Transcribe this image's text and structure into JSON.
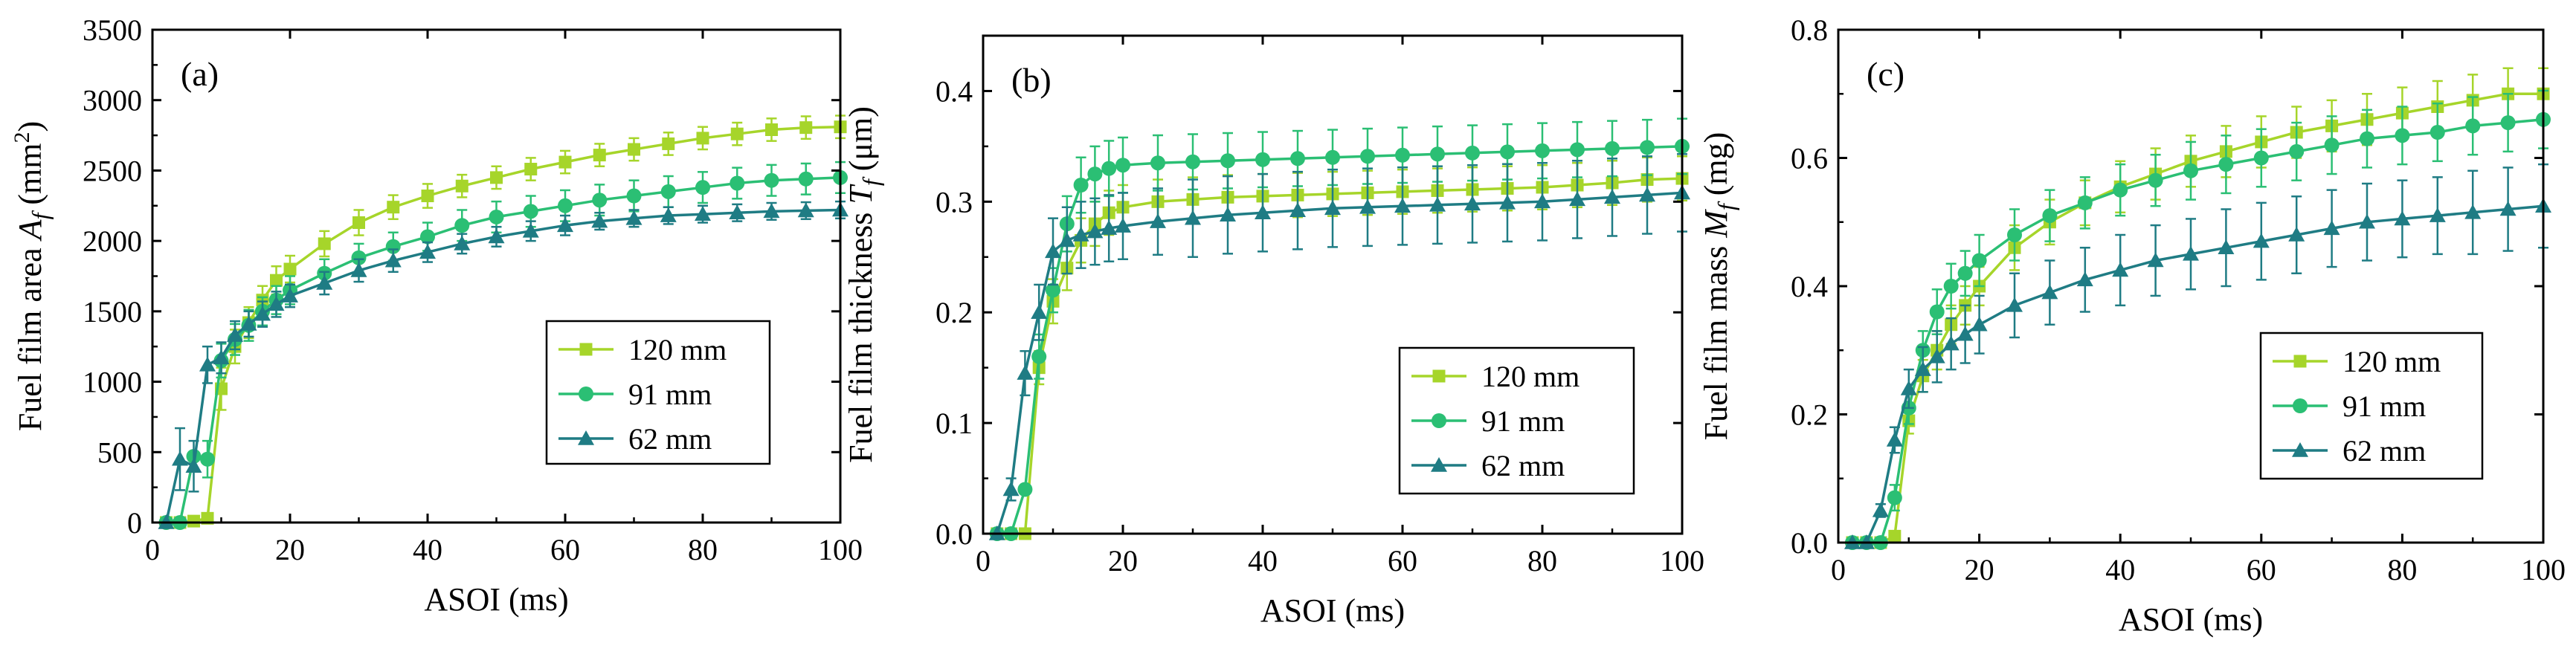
{
  "colors": {
    "s120": "#a6d52a",
    "s91": "#2bbf74",
    "s62": "#1f7c84"
  },
  "legend_labels": [
    "120 mm",
    "91 mm",
    "62 mm"
  ],
  "chart_data": [
    {
      "type": "line",
      "panel_label": "(a)",
      "title": "",
      "xlabel": "ASOI (ms)",
      "ylabel_main": "Fuel film area ",
      "ylabel_sym": "A",
      "ylabel_sub": "f",
      "ylabel_unit_pre": " (mm",
      "ylabel_unit_sup": "2",
      "ylabel_unit_post": ")",
      "xlim": [
        0,
        100
      ],
      "ylim": [
        0,
        3500
      ],
      "xticks": [
        0,
        20,
        40,
        60,
        80,
        100
      ],
      "yticks": [
        0,
        500,
        1000,
        1500,
        2000,
        2500,
        3000,
        3500
      ],
      "ytick_labels": [
        "0",
        "500",
        "1000",
        "1500",
        "2000",
        "2500",
        "3000",
        "3500"
      ],
      "legend_location": "center-right",
      "series": [
        {
          "name": "120 mm",
          "color_key": "s120",
          "marker": "square",
          "x": [
            2,
            4,
            6,
            8,
            10,
            12,
            14,
            16,
            18,
            20,
            25,
            30,
            35,
            40,
            45,
            50,
            55,
            60,
            65,
            70,
            75,
            80,
            85,
            90,
            95,
            100
          ],
          "y": [
            0,
            0,
            10,
            30,
            950,
            1250,
            1420,
            1580,
            1720,
            1800,
            1980,
            2130,
            2240,
            2320,
            2390,
            2450,
            2510,
            2560,
            2610,
            2650,
            2690,
            2730,
            2760,
            2790,
            2805,
            2810
          ],
          "err": [
            0,
            0,
            0,
            0,
            150,
            120,
            110,
            100,
            100,
            95,
            90,
            90,
            85,
            85,
            80,
            80,
            80,
            80,
            80,
            80,
            80,
            80,
            80,
            80,
            80,
            80
          ]
        },
        {
          "name": "91 mm",
          "color_key": "s91",
          "marker": "circle",
          "x": [
            2,
            4,
            6,
            8,
            10,
            12,
            14,
            16,
            18,
            20,
            25,
            30,
            35,
            40,
            45,
            50,
            55,
            60,
            65,
            70,
            75,
            80,
            85,
            90,
            95,
            100
          ],
          "y": [
            0,
            0,
            470,
            450,
            1150,
            1300,
            1400,
            1500,
            1580,
            1650,
            1770,
            1880,
            1960,
            2030,
            2110,
            2170,
            2210,
            2250,
            2290,
            2320,
            2350,
            2380,
            2410,
            2430,
            2440,
            2450
          ],
          "err": [
            0,
            0,
            0,
            130,
            120,
            110,
            110,
            100,
            100,
            100,
            100,
            100,
            100,
            100,
            110,
            110,
            110,
            110,
            110,
            110,
            110,
            110,
            110,
            110,
            110,
            110
          ]
        },
        {
          "name": "62 mm",
          "color_key": "s62",
          "marker": "triangle",
          "x": [
            2,
            4,
            6,
            8,
            10,
            12,
            14,
            16,
            18,
            20,
            25,
            30,
            35,
            40,
            45,
            50,
            55,
            60,
            65,
            70,
            75,
            80,
            85,
            90,
            95,
            100
          ],
          "y": [
            0,
            450,
            400,
            1120,
            1170,
            1330,
            1410,
            1480,
            1550,
            1610,
            1700,
            1790,
            1860,
            1920,
            1980,
            2030,
            2070,
            2110,
            2140,
            2160,
            2180,
            2190,
            2200,
            2210,
            2215,
            2220
          ],
          "err": [
            0,
            220,
            180,
            130,
            110,
            100,
            90,
            90,
            90,
            80,
            80,
            80,
            80,
            70,
            70,
            70,
            70,
            70,
            60,
            60,
            60,
            60,
            60,
            60,
            60,
            60
          ]
        }
      ]
    },
    {
      "type": "line",
      "panel_label": "(b)",
      "title": "",
      "xlabel": "ASOI (ms)",
      "ylabel_main": "Fuel film thickness ",
      "ylabel_sym": "T",
      "ylabel_sub": "f",
      "ylabel_unit_pre": " (μm)",
      "ylabel_unit_sup": "",
      "ylabel_unit_post": "",
      "xlim": [
        0,
        100
      ],
      "ylim": [
        0,
        0.45
      ],
      "xticks": [
        0,
        20,
        40,
        60,
        80,
        100
      ],
      "yticks": [
        0,
        0.1,
        0.2,
        0.3,
        0.4
      ],
      "ytick_labels": [
        "0.0",
        "0.1",
        "0.2",
        "0.3",
        "0.4"
      ],
      "legend_location": "center-right",
      "series": [
        {
          "name": "120 mm",
          "color_key": "s120",
          "marker": "square",
          "x": [
            2,
            4,
            6,
            8,
            10,
            12,
            14,
            16,
            18,
            20,
            25,
            30,
            35,
            40,
            45,
            50,
            55,
            60,
            65,
            70,
            75,
            80,
            85,
            90,
            95,
            100
          ],
          "y": [
            0,
            0,
            0,
            0.15,
            0.21,
            0.24,
            0.265,
            0.28,
            0.29,
            0.295,
            0.3,
            0.302,
            0.304,
            0.305,
            0.306,
            0.307,
            0.308,
            0.309,
            0.31,
            0.311,
            0.312,
            0.313,
            0.315,
            0.317,
            0.32,
            0.321
          ],
          "err": [
            0,
            0,
            0,
            0.015,
            0.02,
            0.02,
            0.02,
            0.02,
            0.02,
            0.02,
            0.02,
            0.02,
            0.02,
            0.02,
            0.02,
            0.02,
            0.02,
            0.02,
            0.02,
            0.02,
            0.02,
            0.02,
            0.02,
            0.02,
            0.02,
            0.02
          ]
        },
        {
          "name": "91 mm",
          "color_key": "s91",
          "marker": "circle",
          "x": [
            2,
            4,
            6,
            8,
            10,
            12,
            14,
            16,
            18,
            20,
            25,
            30,
            35,
            40,
            45,
            50,
            55,
            60,
            65,
            70,
            75,
            80,
            85,
            90,
            95,
            100
          ],
          "y": [
            0,
            0,
            0.04,
            0.16,
            0.22,
            0.28,
            0.315,
            0.325,
            0.33,
            0.333,
            0.335,
            0.336,
            0.337,
            0.338,
            0.339,
            0.34,
            0.341,
            0.342,
            0.343,
            0.344,
            0.345,
            0.346,
            0.347,
            0.348,
            0.349,
            0.35
          ],
          "err": [
            0,
            0,
            0,
            0.02,
            0.02,
            0.025,
            0.025,
            0.025,
            0.025,
            0.025,
            0.025,
            0.025,
            0.025,
            0.025,
            0.025,
            0.025,
            0.025,
            0.025,
            0.025,
            0.025,
            0.025,
            0.025,
            0.025,
            0.025,
            0.025,
            0.025
          ]
        },
        {
          "name": "62 mm",
          "color_key": "s62",
          "marker": "triangle",
          "x": [
            2,
            4,
            6,
            8,
            10,
            12,
            14,
            16,
            18,
            20,
            25,
            30,
            35,
            40,
            45,
            50,
            55,
            60,
            65,
            70,
            75,
            80,
            85,
            90,
            95,
            100
          ],
          "y": [
            0,
            0.04,
            0.145,
            0.2,
            0.255,
            0.265,
            0.27,
            0.273,
            0.276,
            0.278,
            0.282,
            0.285,
            0.288,
            0.29,
            0.292,
            0.294,
            0.295,
            0.296,
            0.297,
            0.298,
            0.299,
            0.3,
            0.302,
            0.304,
            0.306,
            0.308
          ],
          "err": [
            0,
            0.01,
            0.02,
            0.025,
            0.03,
            0.03,
            0.03,
            0.03,
            0.03,
            0.03,
            0.03,
            0.035,
            0.035,
            0.035,
            0.035,
            0.035,
            0.035,
            0.035,
            0.035,
            0.035,
            0.035,
            0.035,
            0.035,
            0.035,
            0.035,
            0.035
          ]
        }
      ]
    },
    {
      "type": "line",
      "panel_label": "(c)",
      "title": "",
      "xlabel": "ASOI (ms)",
      "ylabel_main": "Fuel film mass ",
      "ylabel_sym": "M",
      "ylabel_sub": "f",
      "ylabel_unit_pre": " (mg)",
      "ylabel_unit_sup": "",
      "ylabel_unit_post": "",
      "xlim": [
        0,
        100
      ],
      "ylim": [
        0,
        0.8
      ],
      "xticks": [
        0,
        20,
        40,
        60,
        80,
        100
      ],
      "yticks": [
        0,
        0.2,
        0.4,
        0.6,
        0.8
      ],
      "ytick_labels": [
        "0.0",
        "0.2",
        "0.4",
        "0.6",
        "0.8"
      ],
      "legend_location": "lower-right",
      "series": [
        {
          "name": "120 mm",
          "color_key": "s120",
          "marker": "square",
          "x": [
            2,
            4,
            6,
            8,
            10,
            12,
            14,
            16,
            18,
            20,
            25,
            30,
            35,
            40,
            45,
            50,
            55,
            60,
            65,
            70,
            75,
            80,
            85,
            90,
            95,
            100
          ],
          "y": [
            0,
            0,
            0,
            0.01,
            0.19,
            0.26,
            0.3,
            0.34,
            0.37,
            0.4,
            0.46,
            0.5,
            0.53,
            0.555,
            0.575,
            0.595,
            0.61,
            0.625,
            0.64,
            0.65,
            0.66,
            0.67,
            0.68,
            0.69,
            0.7,
            0.7
          ],
          "err": [
            0,
            0,
            0,
            0,
            0.02,
            0.025,
            0.03,
            0.03,
            0.03,
            0.03,
            0.035,
            0.035,
            0.035,
            0.04,
            0.04,
            0.04,
            0.04,
            0.04,
            0.04,
            0.04,
            0.04,
            0.04,
            0.04,
            0.04,
            0.04,
            0.04
          ]
        },
        {
          "name": "91 mm",
          "color_key": "s91",
          "marker": "circle",
          "x": [
            2,
            4,
            6,
            8,
            10,
            12,
            14,
            16,
            18,
            20,
            25,
            30,
            35,
            40,
            45,
            50,
            55,
            60,
            65,
            70,
            75,
            80,
            85,
            90,
            95,
            100
          ],
          "y": [
            0,
            0,
            0,
            0.07,
            0.21,
            0.3,
            0.36,
            0.4,
            0.42,
            0.44,
            0.48,
            0.51,
            0.53,
            0.55,
            0.565,
            0.58,
            0.59,
            0.6,
            0.61,
            0.62,
            0.63,
            0.635,
            0.64,
            0.65,
            0.655,
            0.66
          ],
          "err": [
            0,
            0,
            0,
            0.02,
            0.025,
            0.03,
            0.035,
            0.035,
            0.035,
            0.04,
            0.04,
            0.04,
            0.04,
            0.04,
            0.04,
            0.045,
            0.045,
            0.045,
            0.045,
            0.045,
            0.045,
            0.045,
            0.045,
            0.045,
            0.045,
            0.045
          ]
        },
        {
          "name": "62 mm",
          "color_key": "s62",
          "marker": "triangle",
          "x": [
            2,
            4,
            6,
            8,
            10,
            12,
            14,
            16,
            18,
            20,
            25,
            30,
            35,
            40,
            45,
            50,
            55,
            60,
            65,
            70,
            75,
            80,
            85,
            90,
            95,
            100
          ],
          "y": [
            0,
            0,
            0.05,
            0.16,
            0.24,
            0.27,
            0.29,
            0.31,
            0.325,
            0.34,
            0.37,
            0.39,
            0.41,
            0.425,
            0.44,
            0.45,
            0.46,
            0.47,
            0.48,
            0.49,
            0.5,
            0.505,
            0.51,
            0.515,
            0.52,
            0.525
          ],
          "err": [
            0,
            0,
            0.01,
            0.02,
            0.03,
            0.035,
            0.04,
            0.04,
            0.045,
            0.045,
            0.05,
            0.05,
            0.05,
            0.055,
            0.055,
            0.055,
            0.06,
            0.06,
            0.06,
            0.06,
            0.06,
            0.06,
            0.06,
            0.065,
            0.065,
            0.065
          ]
        }
      ]
    }
  ]
}
